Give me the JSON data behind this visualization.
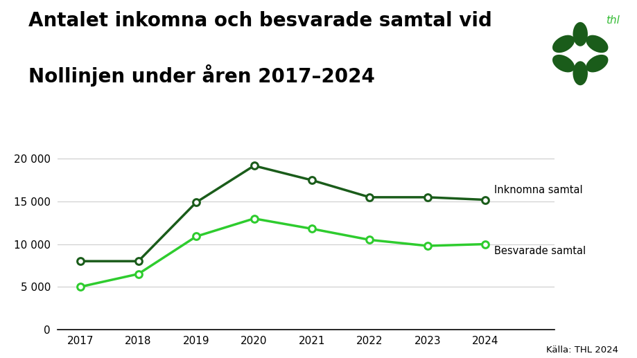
{
  "title_line1": "Antalet inkomna och besvarade samtal vid",
  "title_line2": "Nollinjen under åren 2017–2024",
  "years": [
    2017,
    2018,
    2019,
    2020,
    2021,
    2022,
    2023,
    2024
  ],
  "inkomna": [
    8000,
    8000,
    14900,
    19200,
    17500,
    15500,
    15500,
    15200
  ],
  "besvarade": [
    5000,
    6500,
    10900,
    13000,
    11800,
    10500,
    9800,
    10000
  ],
  "color_inkomna": "#1a5c1a",
  "color_besvarade": "#2ecc2e",
  "label_inkomna": "Inknomna samtal",
  "label_besvarade": "Besvarade samtal",
  "ylim": [
    0,
    21000
  ],
  "yticks": [
    0,
    5000,
    10000,
    15000,
    20000
  ],
  "ytick_labels": [
    "0",
    "5 000",
    "10 000",
    "15 000",
    "20 000"
  ],
  "source_text": "Källa: THL 2024",
  "background_color": "#ffffff",
  "title_fontsize": 20,
  "marker_size": 7,
  "linewidth": 2.5,
  "flower_color": "#1a5c1a",
  "thl_text_color": "#33bb33"
}
